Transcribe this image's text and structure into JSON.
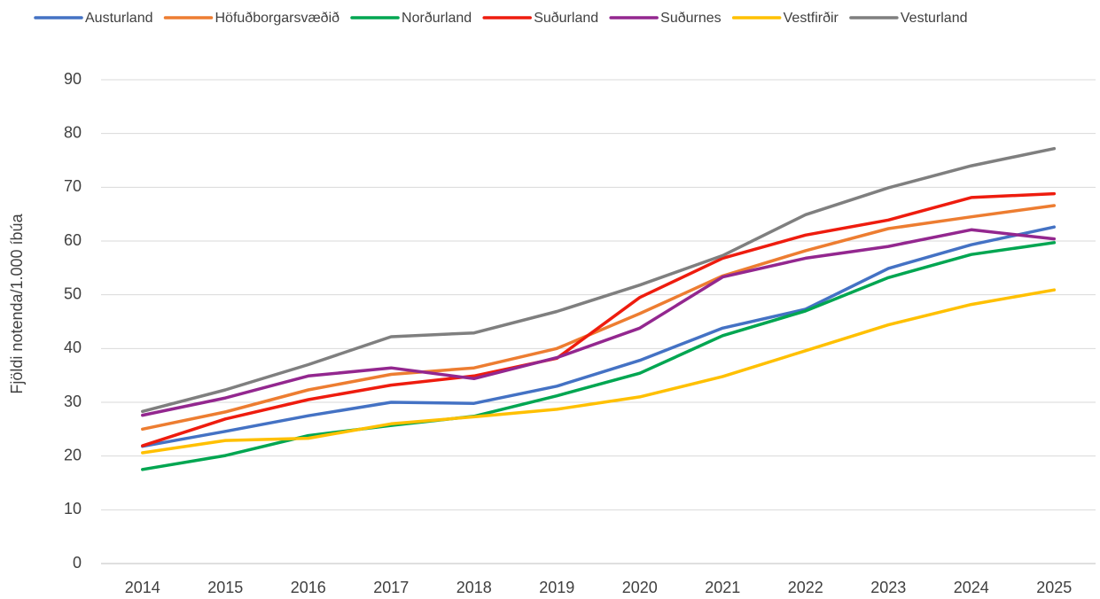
{
  "chart_data": {
    "type": "line",
    "y_axis_label": "Fjöldi notenda/1.000 íbúa",
    "categories": [
      "2014",
      "2015",
      "2016",
      "2017",
      "2018",
      "2019",
      "2020",
      "2021",
      "2022",
      "2023",
      "2024",
      "2025"
    ],
    "series": [
      {
        "name": "Austurland",
        "color": "#4472c4",
        "values": [
          21.8,
          24.6,
          27.5,
          30.0,
          29.8,
          33.0,
          37.8,
          43.8,
          47.3,
          54.9,
          59.3,
          62.6
        ]
      },
      {
        "name": "Höfuðborgarsvæðið",
        "color": "#ed7d31",
        "values": [
          25.0,
          28.2,
          32.3,
          35.2,
          36.4,
          40.0,
          46.5,
          53.5,
          58.2,
          62.3,
          64.5,
          66.6
        ]
      },
      {
        "name": "Norðurland",
        "color": "#00a651",
        "values": [
          17.5,
          20.1,
          23.8,
          25.7,
          27.4,
          31.2,
          35.4,
          42.4,
          47.0,
          53.2,
          57.5,
          59.7
        ]
      },
      {
        "name": "Suðurland",
        "color": "#ee1c0e",
        "values": [
          21.9,
          26.9,
          30.5,
          33.2,
          34.9,
          38.2,
          49.5,
          56.8,
          61.1,
          63.9,
          68.1,
          68.8
        ]
      },
      {
        "name": "Suðurnes",
        "color": "#93278f",
        "values": [
          27.6,
          30.8,
          34.9,
          36.4,
          34.4,
          38.3,
          43.8,
          53.3,
          56.8,
          59.0,
          62.1,
          60.4
        ]
      },
      {
        "name": "Vestfirðir",
        "color": "#ffc000",
        "values": [
          20.6,
          22.9,
          23.3,
          26.0,
          27.3,
          28.7,
          31.0,
          34.8,
          39.6,
          44.4,
          48.2,
          50.9
        ]
      },
      {
        "name": "Vesturland",
        "color": "#7f7f7f",
        "values": [
          28.3,
          32.3,
          37.0,
          42.2,
          42.9,
          46.9,
          51.8,
          57.3,
          64.9,
          69.9,
          74.0,
          77.2
        ]
      }
    ],
    "ylim": [
      0,
      90
    ],
    "yticks": [
      0,
      10,
      20,
      30,
      40,
      50,
      60,
      70,
      80,
      90
    ],
    "grid": true,
    "legend": "top"
  }
}
